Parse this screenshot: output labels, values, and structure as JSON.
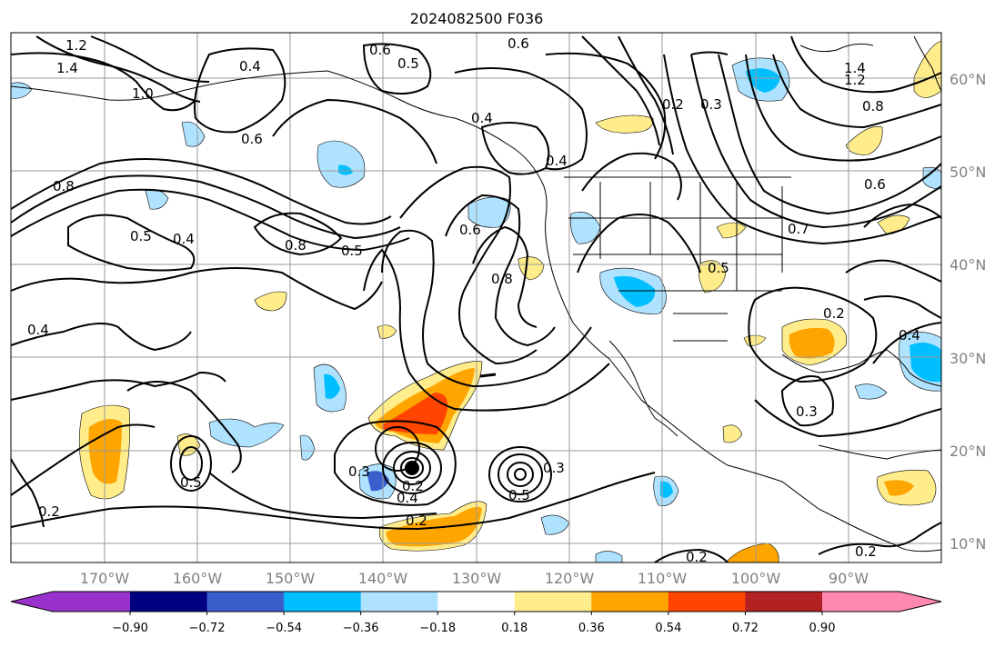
{
  "title": "2024082500 F036",
  "lat_labels": [
    "60°N",
    "50°N",
    "40°N",
    "30°N",
    "20°N",
    "10°N"
  ],
  "lon_labels": [
    "170°W",
    "160°W",
    "150°W",
    "140°W",
    "130°W",
    "120°W",
    "110°W",
    "100°W",
    "90°W"
  ],
  "contour_labels": [
    "1.2",
    "1.4",
    "1.0",
    "0.4",
    "0.6",
    "0.5",
    "0.6",
    "0.4",
    "0.6",
    "0.4",
    "0.2",
    "0.3",
    "1.4",
    "1.2",
    "0.8",
    "0.6",
    "0.8",
    "0.5",
    "0.4",
    "0.8",
    "0.5",
    "0.6",
    "0.8",
    "0.5",
    "0.7",
    "0.4",
    "0.2",
    "0.3",
    "0.3",
    "0.5",
    "0.2",
    "0.4",
    "0.2",
    "0.5",
    "0.3",
    "0.2",
    "0.2",
    "0.2",
    "0.4"
  ],
  "colorbar": {
    "colors": [
      "#9932cc",
      "#000080",
      "#3a5fcd",
      "#00bfff",
      "#aee2ff",
      "#ffffff",
      "#ffec8b",
      "#ffa500",
      "#ff4500",
      "#b22222",
      "#ff88b0"
    ],
    "ticks": [
      "−0.90",
      "−0.72",
      "−0.54",
      "−0.36",
      "−0.18",
      "0.18",
      "0.36",
      "0.54",
      "0.72",
      "0.90"
    ]
  }
}
